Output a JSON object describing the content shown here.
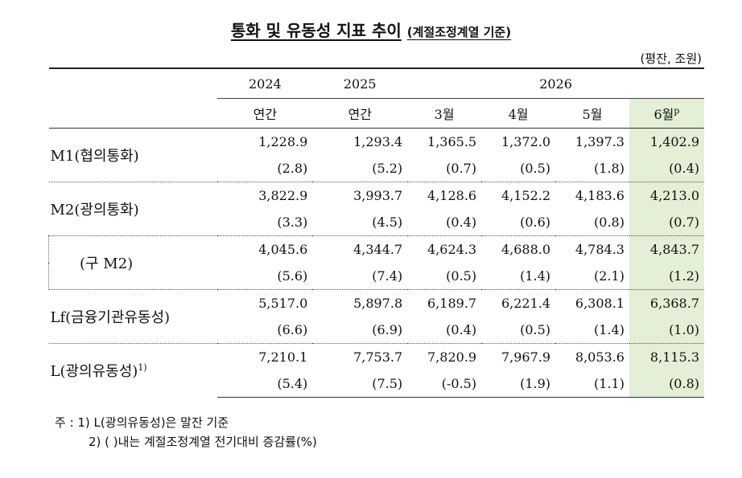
{
  "title": {
    "main": "통화 및 유동성 지표 추이",
    "sub": "(계절조정계열 기준)"
  },
  "unit": "(평잔, 조원)",
  "header": {
    "years": [
      "2024",
      "2025",
      "2026"
    ],
    "periods": [
      "연간",
      "연간",
      "3월",
      "4월",
      "5월",
      "6월"
    ],
    "last_period_sup": "p"
  },
  "rows": [
    {
      "label": "M1(협의통화)",
      "values": [
        "1,228.9",
        "1,293.4",
        "1,365.5",
        "1,372.0",
        "1,397.3",
        "1,402.9"
      ],
      "changes": [
        "(2.8)",
        "(5.2)",
        "(0.7)",
        "(0.5)",
        "(1.8)",
        "(0.4)"
      ]
    },
    {
      "label": "M2(광의통화)",
      "values": [
        "3,822.9",
        "3,993.7",
        "4,128.6",
        "4,152.2",
        "4,183.6",
        "4,213.0"
      ],
      "changes": [
        "(3.3)",
        "(4.5)",
        "(0.4)",
        "(0.6)",
        "(0.8)",
        "(0.7)"
      ]
    },
    {
      "label": "(구 M2)",
      "values": [
        "4,045.6",
        "4,344.7",
        "4,624.3",
        "4,688.0",
        "4,784.3",
        "4,843.7"
      ],
      "changes": [
        "(5.6)",
        "(7.4)",
        "(0.5)",
        "(1.4)",
        "(2.1)",
        "(1.2)"
      ]
    },
    {
      "label": "Lf(금융기관유동성)",
      "values": [
        "5,517.0",
        "5,897.8",
        "6,189.7",
        "6,221.4",
        "6,308.1",
        "6,368.7"
      ],
      "changes": [
        "(6.6)",
        "(6.9)",
        "(0.4)",
        "(0.5)",
        "(1.4)",
        "(1.0)"
      ]
    },
    {
      "label": "L(광의유동성)",
      "label_sup": "1)",
      "values": [
        "7,210.1",
        "7,753.7",
        "7,820.9",
        "7,967.9",
        "8,053.6",
        "8,115.3"
      ],
      "changes": [
        "(5.4)",
        "(7.5)",
        "(-0.5)",
        "(1.9)",
        "(1.1)",
        "(0.8)"
      ]
    }
  ],
  "notes": {
    "line1": "주 : 1) L(광의유동성)은 말잔 기준",
    "line2": "2) (    )내는 계절조정계열 전기대비 증감률(%)"
  }
}
